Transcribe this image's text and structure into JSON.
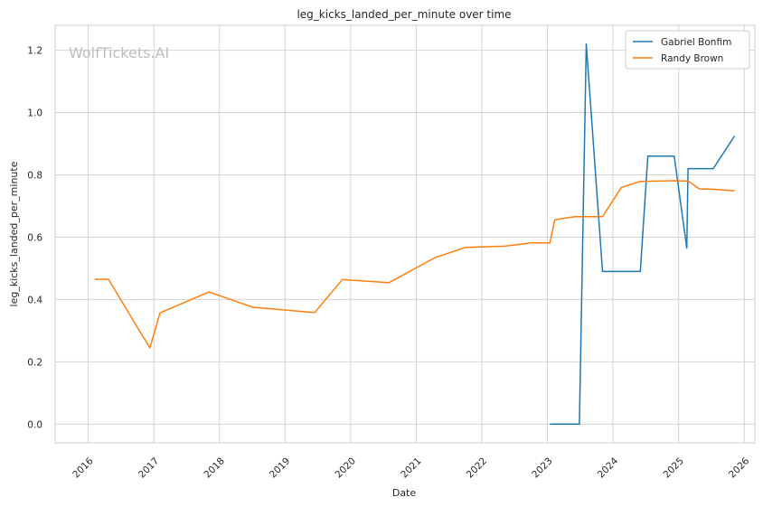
{
  "chart_data": {
    "type": "line",
    "title": "leg_kicks_landed_per_minute over time",
    "xlabel": "Date",
    "ylabel": "leg_kicks_landed_per_minute",
    "watermark": "WolfTickets.AI",
    "x_ticks": [
      "2016",
      "2017",
      "2018",
      "2019",
      "2020",
      "2021",
      "2022",
      "2023",
      "2024",
      "2025",
      "2026"
    ],
    "y_ticks": [
      "0.0",
      "0.2",
      "0.4",
      "0.6",
      "0.8",
      "1.0",
      "1.2"
    ],
    "xlim": [
      "2015-07-01",
      "2026-03-01"
    ],
    "ylim": [
      -0.06,
      1.28
    ],
    "grid": true,
    "legend_position": "top-right",
    "series": [
      {
        "name": "Gabriel Bonfim",
        "color": "#1f77b4",
        "points": [
          [
            "2023-01-15",
            0.0
          ],
          [
            "2023-06-28",
            0.0
          ],
          [
            "2023-08-05",
            1.22
          ],
          [
            "2023-11-04",
            0.49
          ],
          [
            "2024-06-01",
            0.49
          ],
          [
            "2024-07-13",
            0.86
          ],
          [
            "2024-12-07",
            0.86
          ],
          [
            "2025-02-15",
            0.565
          ],
          [
            "2025-02-22",
            0.82
          ],
          [
            "2025-07-12",
            0.82
          ],
          [
            "2025-11-08",
            0.925
          ]
        ]
      },
      {
        "name": "Randy Brown",
        "color": "#ff7f0e",
        "points": [
          [
            "2016-02-06",
            0.465
          ],
          [
            "2016-04-23",
            0.465
          ],
          [
            "2016-10-01",
            0.31
          ],
          [
            "2016-12-10",
            0.245
          ],
          [
            "2017-02-04",
            0.357
          ],
          [
            "2017-11-04",
            0.424
          ],
          [
            "2018-07-07",
            0.375
          ],
          [
            "2019-06-15",
            0.358
          ],
          [
            "2019-11-16",
            0.464
          ],
          [
            "2020-08-01",
            0.454
          ],
          [
            "2021-04-17",
            0.535
          ],
          [
            "2021-10-02",
            0.567
          ],
          [
            "2022-05-07",
            0.571
          ],
          [
            "2022-10-01",
            0.582
          ],
          [
            "2023-01-15",
            0.582
          ],
          [
            "2023-02-11",
            0.656
          ],
          [
            "2023-06-03",
            0.666
          ],
          [
            "2023-11-04",
            0.666
          ],
          [
            "2024-02-17",
            0.76
          ],
          [
            "2024-06-01",
            0.779
          ],
          [
            "2024-12-07",
            0.781
          ],
          [
            "2025-02-22",
            0.78
          ],
          [
            "2025-04-26",
            0.755
          ],
          [
            "2025-07-12",
            0.754
          ],
          [
            "2025-11-08",
            0.749
          ]
        ]
      }
    ]
  }
}
